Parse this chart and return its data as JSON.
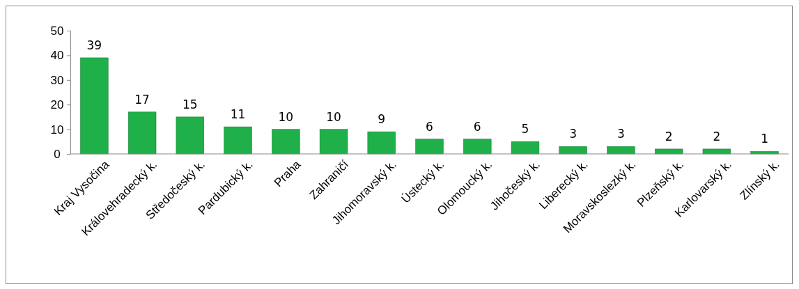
{
  "chart_data": {
    "type": "bar",
    "categories": [
      "Kraj Vysočina",
      "Královehradecký k.",
      "Středočeský k.",
      "Pardubický k.",
      "Praha",
      "Zahraničí",
      "Jihomoravský k.",
      "Ústecký k.",
      "Olomoucký k.",
      "Jihočeský k.",
      "Liberecký k.",
      "Moravskoslezký k.",
      "Plzeňský k.",
      "Karlovarský k.",
      "Zlínský k."
    ],
    "values": [
      39,
      17,
      15,
      11,
      10,
      10,
      9,
      6,
      6,
      5,
      3,
      3,
      2,
      2,
      1
    ],
    "color": "#1fb04a",
    "ylim": [
      0,
      50
    ],
    "yticks": [
      0,
      10,
      20,
      30,
      40,
      50
    ],
    "grid": false,
    "data_labels": true
  }
}
